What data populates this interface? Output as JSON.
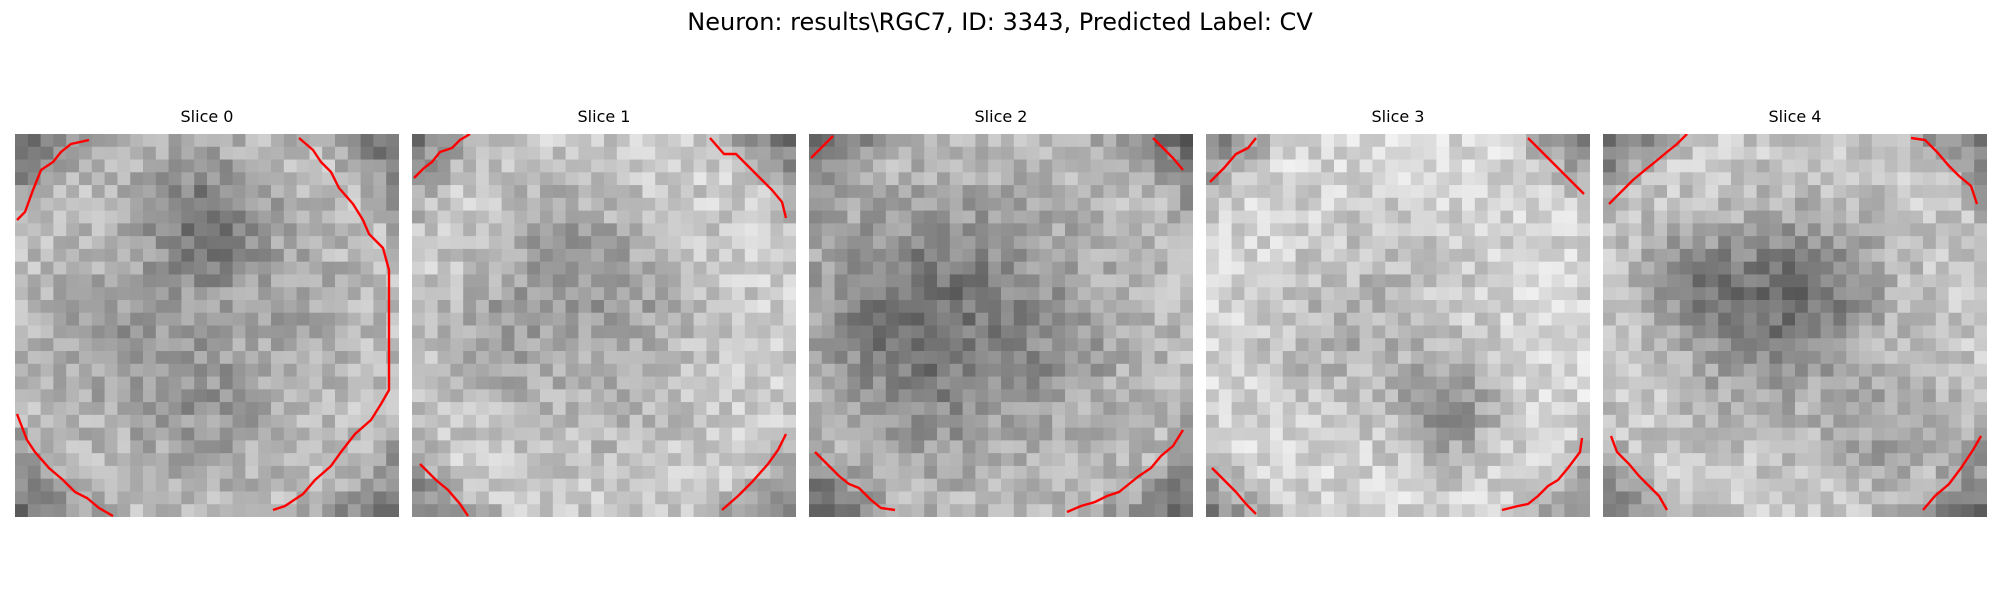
{
  "figure": {
    "title": "Neuron: results\\RGC7, ID: 3343, Predicted Label: CV"
  },
  "panels": [
    {
      "title": "Slice 0"
    },
    {
      "title": "Slice 1"
    },
    {
      "title": "Slice 2"
    },
    {
      "title": "Slice 3"
    },
    {
      "title": "Slice 4"
    }
  ],
  "colors": {
    "background": "#ffffff",
    "contour": "#ff0000",
    "colormap": "grayscale"
  }
}
